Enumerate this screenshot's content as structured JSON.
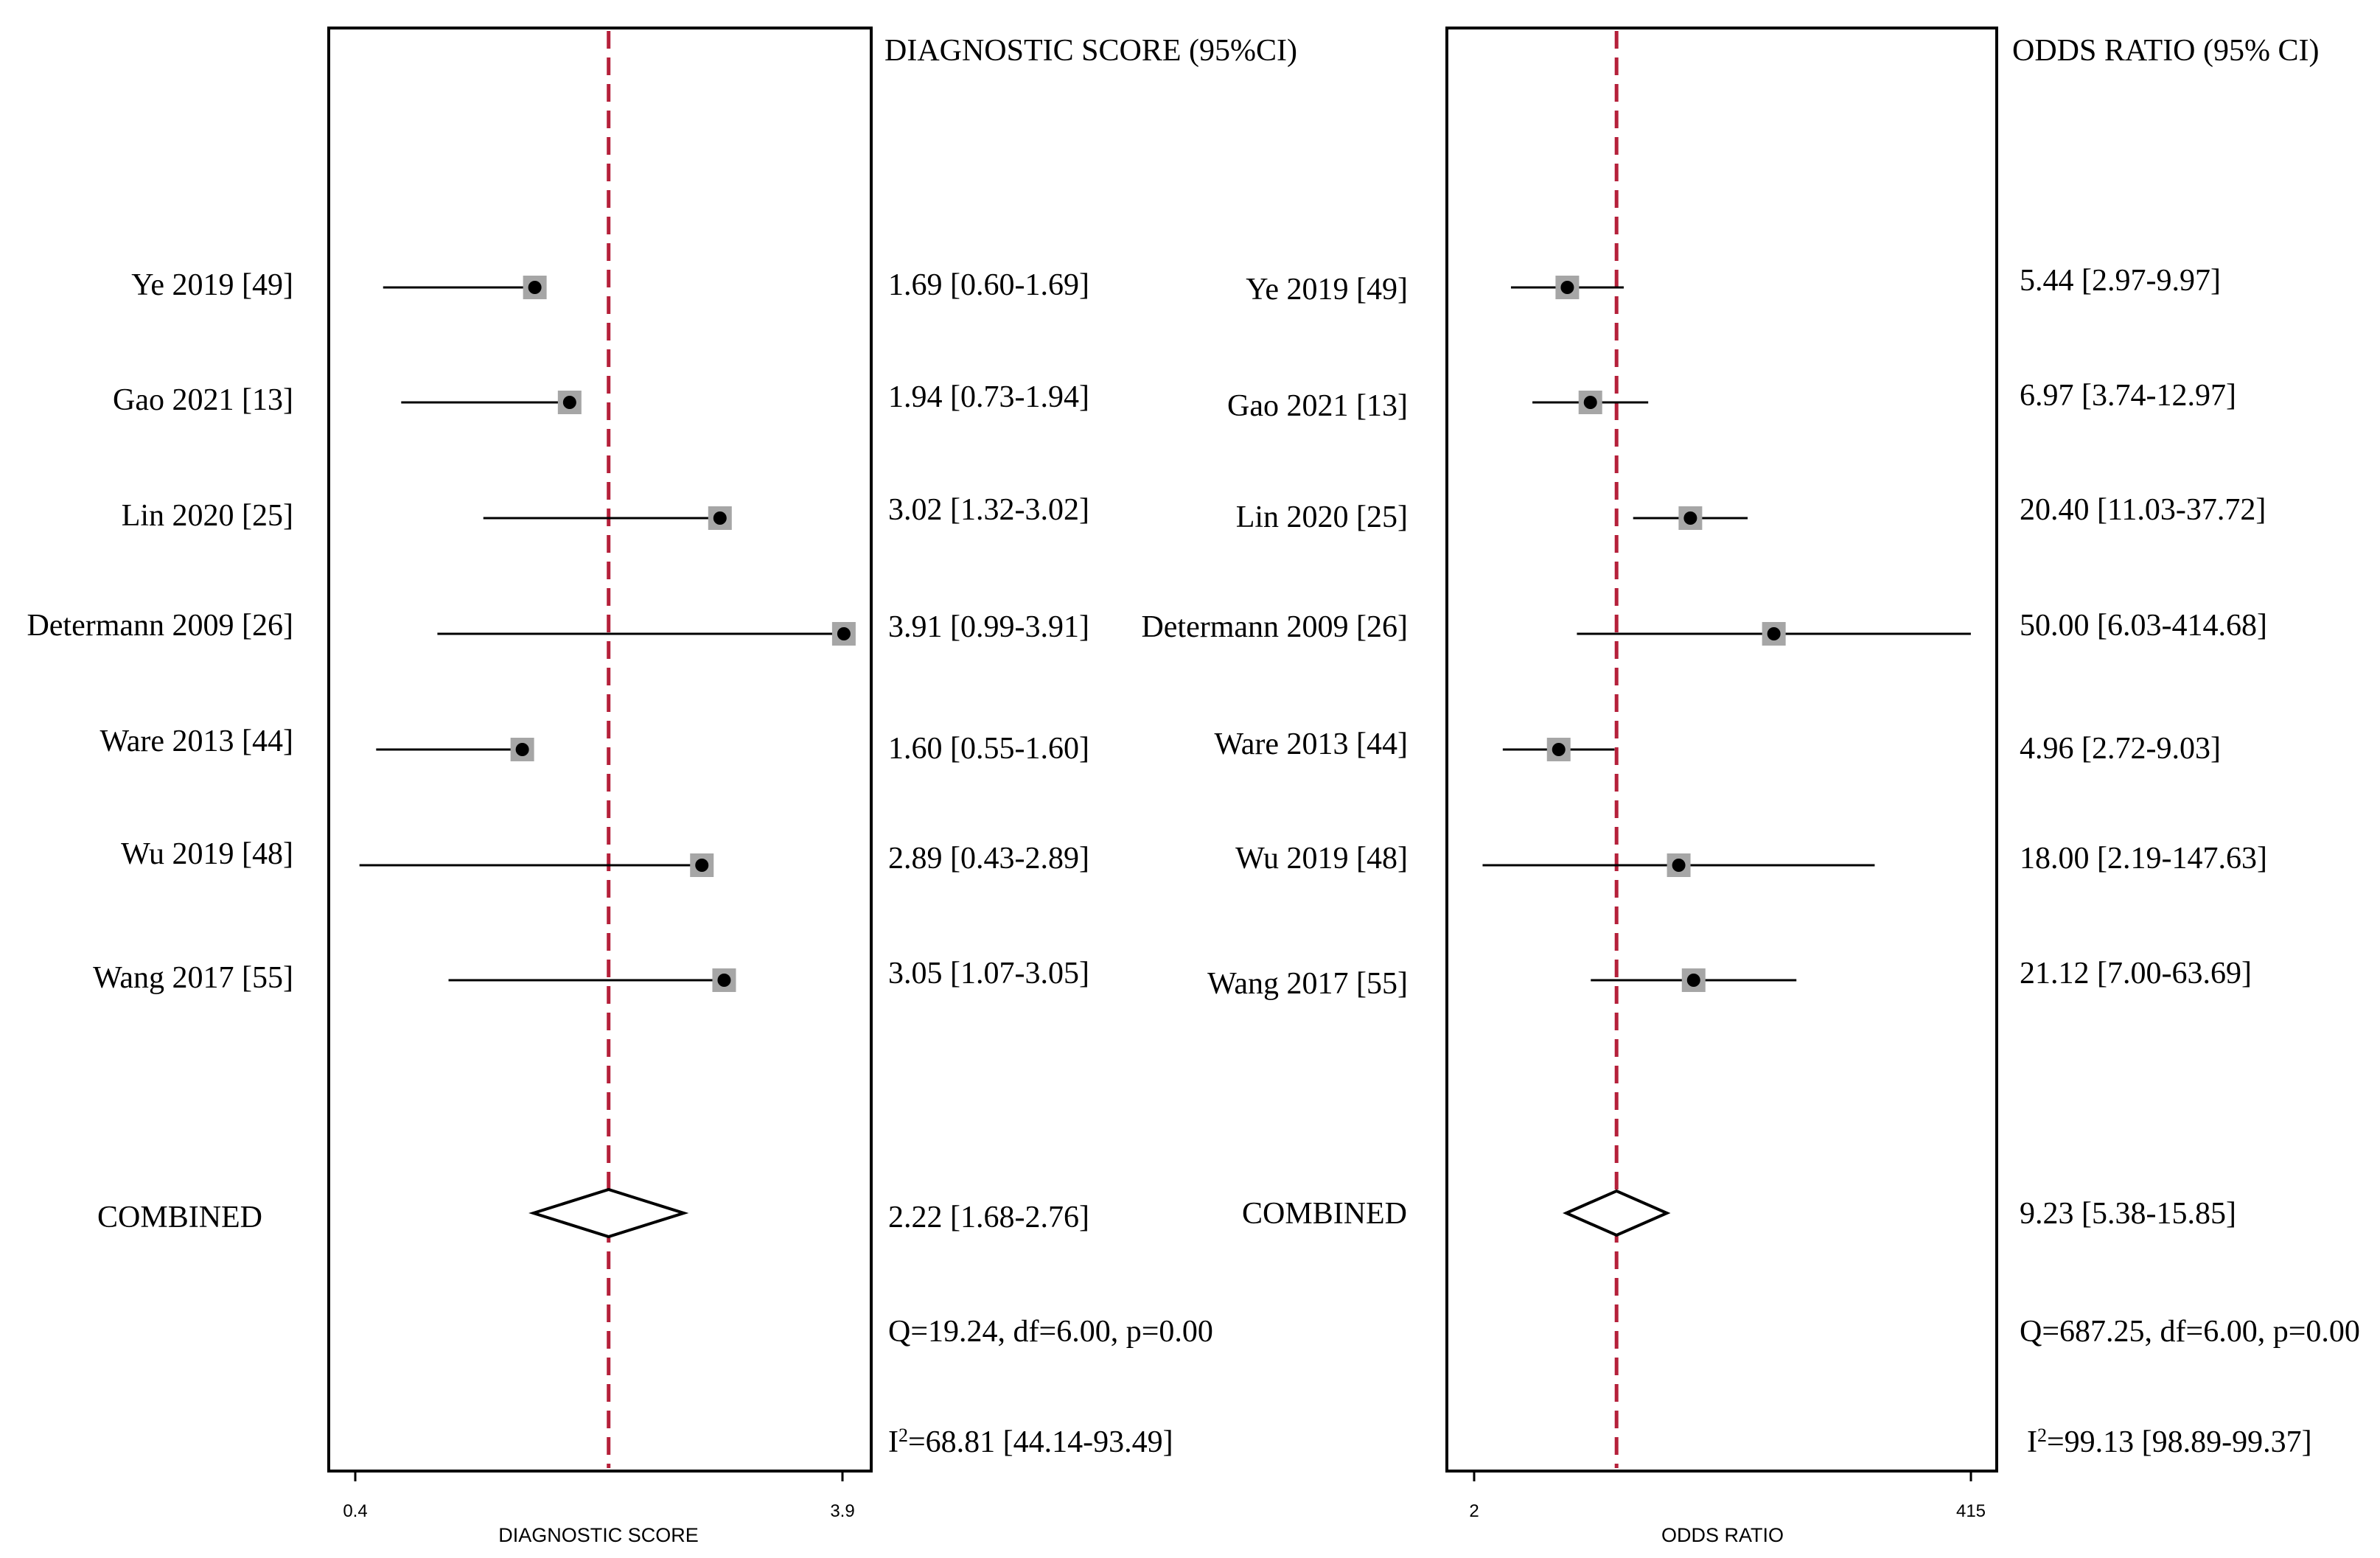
{
  "chart_data": [
    {
      "type": "forest",
      "column_header": "DIAGNOSTIC SCORE (95%CI)",
      "xlabel": "DIAGNOSTIC SCORE",
      "xlim": [
        0.4,
        3.9
      ],
      "x_ticks": [
        "0.4",
        "3.9"
      ],
      "reference_line": 2.22,
      "studies": [
        {
          "label": "Ye 2019 [49]",
          "estimate": 1.69,
          "lower": 0.6,
          "upper": 1.69,
          "text": "1.69 [0.60-1.69]"
        },
        {
          "label": "Gao 2021 [13]",
          "estimate": 1.94,
          "lower": 0.73,
          "upper": 1.94,
          "text": "1.94 [0.73-1.94]"
        },
        {
          "label": "Lin 2020 [25]",
          "estimate": 3.02,
          "lower": 1.32,
          "upper": 3.02,
          "text": "3.02 [1.32-3.02]"
        },
        {
          "label": "Determann 2009 [26]",
          "estimate": 3.91,
          "lower": 0.99,
          "upper": 3.91,
          "text": "3.91 [0.99-3.91]"
        },
        {
          "label": "Ware 2013 [44]",
          "estimate": 1.6,
          "lower": 0.55,
          "upper": 1.6,
          "text": "1.60 [0.55-1.60]"
        },
        {
          "label": "Wu 2019 [48]",
          "estimate": 2.89,
          "lower": 0.43,
          "upper": 2.89,
          "text": "2.89 [0.43-2.89]"
        },
        {
          "label": "Wang 2017 [55]",
          "estimate": 3.05,
          "lower": 1.07,
          "upper": 3.05,
          "text": "3.05 [1.07-3.05]"
        }
      ],
      "combined": {
        "label": "COMBINED",
        "estimate": 2.22,
        "lower": 1.68,
        "upper": 2.76,
        "text": "2.22 [1.68-2.76]"
      },
      "heterogeneity": "Q=19.24, df=6.00, p=0.00",
      "i2_prefix": "I",
      "i2_rest": "=68.81 [44.14-93.49]"
    },
    {
      "type": "forest",
      "column_header": "ODDS RATIO (95% CI)",
      "xlabel": "ODDS RATIO",
      "xlim": [
        2,
        415
      ],
      "x_ticks": [
        "2",
        "415"
      ],
      "scale": "log",
      "reference_line": 9.23,
      "studies": [
        {
          "label": "Ye 2019 [49]",
          "estimate": 5.44,
          "lower": 2.97,
          "upper": 9.97,
          "text": "5.44 [2.97-9.97]"
        },
        {
          "label": "Gao 2021 [13]",
          "estimate": 6.97,
          "lower": 3.74,
          "upper": 12.97,
          "text": "6.97 [3.74-12.97]"
        },
        {
          "label": "Lin 2020 [25]",
          "estimate": 20.4,
          "lower": 11.03,
          "upper": 37.72,
          "text": "20.40 [11.03-37.72]"
        },
        {
          "label": "Determann 2009 [26]",
          "estimate": 50.0,
          "lower": 6.03,
          "upper": 414.68,
          "text": "50.00 [6.03-414.68]"
        },
        {
          "label": "Ware 2013 [44]",
          "estimate": 4.96,
          "lower": 2.72,
          "upper": 9.03,
          "text": "4.96 [2.72-9.03]"
        },
        {
          "label": "Wu 2019 [48]",
          "estimate": 18.0,
          "lower": 2.19,
          "upper": 147.63,
          "text": "18.00 [2.19-147.63]"
        },
        {
          "label": "Wang 2017 [55]",
          "estimate": 21.12,
          "lower": 7.0,
          "upper": 63.69,
          "text": "21.12 [7.00-63.69]"
        }
      ],
      "combined": {
        "label": "COMBINED",
        "estimate": 9.23,
        "lower": 5.38,
        "upper": 15.85,
        "text": "9.23 [5.38-15.85]"
      },
      "heterogeneity": "Q=687.25, df=6.00, p=0.00",
      "i2_prefix": "I",
      "i2_rest": "=99.13 [98.89-99.37]"
    }
  ],
  "colors": {
    "reference_line": "#b5203a",
    "box_fill": "#a6a6a6",
    "point": "#000000",
    "axis": "#000000"
  }
}
